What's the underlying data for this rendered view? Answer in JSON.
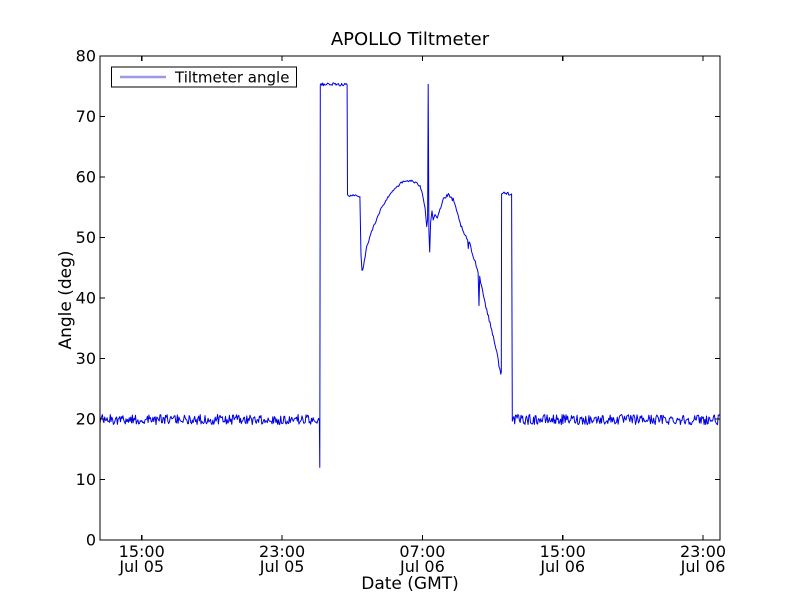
{
  "chart_data": {
    "type": "line",
    "title": "APOLLO Tiltmeter",
    "xlabel": "Date (GMT)",
    "ylabel": "Angle (deg)",
    "grid": false,
    "legend": {
      "position": "upper left",
      "entries": [
        {
          "label": "Tiltmeter angle",
          "sample_color": "#9a9ae6"
        }
      ]
    },
    "line_color": "#0000e8",
    "x_unit": "hours since Jul 05 00:00 GMT",
    "xlim": [
      12.62,
      47.97
    ],
    "ylim": [
      0,
      80
    ],
    "xticks": [
      {
        "t": 15,
        "time": "15:00",
        "date": "Jul 05"
      },
      {
        "t": 23,
        "time": "23:00",
        "date": "Jul 05"
      },
      {
        "t": 31,
        "time": "07:00",
        "date": "Jul 06"
      },
      {
        "t": 39,
        "time": "15:00",
        "date": "Jul 06"
      },
      {
        "t": 47,
        "time": "23:00",
        "date": "Jul 06"
      }
    ],
    "yticks": [
      {
        "v": 0,
        "label": "0"
      },
      {
        "v": 10,
        "label": "10"
      },
      {
        "v": 20,
        "label": "20"
      },
      {
        "v": 30,
        "label": "30"
      },
      {
        "v": 40,
        "label": "40"
      },
      {
        "v": 50,
        "label": "50"
      },
      {
        "v": 60,
        "label": "60"
      },
      {
        "v": 70,
        "label": "70"
      },
      {
        "v": 80,
        "label": "80"
      }
    ],
    "segments": [
      {
        "type": "flat-noisy",
        "t0": 12.62,
        "t1": 25.13,
        "level": 19.9,
        "amp": 0.85
      },
      {
        "type": "path",
        "points": [
          [
            25.13,
            19.2
          ],
          [
            25.15,
            12.0
          ],
          [
            25.18,
            75.0
          ]
        ]
      },
      {
        "type": "flat-noisy",
        "t0": 25.18,
        "t1": 26.71,
        "level": 75.3,
        "amp": 0.25
      },
      {
        "type": "path",
        "points": [
          [
            26.71,
            75.2
          ],
          [
            26.73,
            57.1
          ]
        ]
      },
      {
        "type": "flat-noisy",
        "t0": 26.73,
        "t1": 27.44,
        "level": 56.9,
        "amp": 0.2
      },
      {
        "type": "path",
        "jitter": 0.22,
        "points": [
          [
            27.44,
            56.8
          ],
          [
            27.5,
            47.0
          ],
          [
            27.56,
            44.5
          ],
          [
            27.65,
            45.3
          ],
          [
            27.83,
            48.5
          ],
          [
            28.1,
            51.0
          ],
          [
            28.4,
            53.0
          ],
          [
            28.7,
            55.1
          ],
          [
            28.97,
            56.3
          ],
          [
            29.3,
            57.8
          ],
          [
            29.54,
            58.4
          ],
          [
            29.85,
            59.1
          ],
          [
            30.1,
            59.35
          ],
          [
            30.35,
            59.4
          ],
          [
            30.6,
            59.0
          ],
          [
            30.87,
            58.6
          ],
          [
            31.0,
            57.4
          ],
          [
            31.15,
            55.0
          ],
          [
            31.25,
            51.8
          ]
        ]
      },
      {
        "type": "path",
        "jitter": 0,
        "points": [
          [
            31.25,
            51.8
          ],
          [
            31.3,
            53.0
          ],
          [
            31.33,
            75.3
          ],
          [
            31.37,
            51.0
          ],
          [
            31.42,
            47.6
          ],
          [
            31.47,
            52.5
          ],
          [
            31.55,
            54.4
          ],
          [
            31.62,
            52.9
          ],
          [
            31.72,
            53.8
          ],
          [
            31.85,
            53.2
          ],
          [
            31.95,
            54.2
          ]
        ]
      },
      {
        "type": "path",
        "jitter": 0.3,
        "points": [
          [
            31.95,
            54.2
          ],
          [
            32.2,
            56.4
          ],
          [
            32.48,
            57.0
          ],
          [
            32.76,
            56.2
          ],
          [
            33.05,
            53.4
          ],
          [
            33.34,
            50.7
          ],
          [
            33.58,
            49.7
          ],
          [
            33.62,
            48.0
          ],
          [
            33.66,
            49.3
          ],
          [
            33.91,
            46.8
          ],
          [
            34.18,
            44.5
          ],
          [
            34.23,
            38.8
          ],
          [
            34.27,
            43.5
          ],
          [
            34.48,
            40.5
          ],
          [
            34.67,
            38.0
          ],
          [
            34.86,
            35.8
          ],
          [
            35.05,
            33.6
          ],
          [
            35.24,
            31.1
          ],
          [
            35.37,
            28.9
          ],
          [
            35.47,
            27.4
          ]
        ]
      },
      {
        "type": "path",
        "points": [
          [
            35.47,
            27.4
          ],
          [
            35.5,
            27.8
          ],
          [
            35.52,
            57.0
          ]
        ]
      },
      {
        "type": "flat-noisy",
        "t0": 35.52,
        "t1": 36.09,
        "level": 57.3,
        "amp": 0.3
      },
      {
        "type": "path",
        "points": [
          [
            36.09,
            57.2
          ],
          [
            36.13,
            20.3
          ]
        ]
      },
      {
        "type": "flat-noisy",
        "t0": 36.13,
        "t1": 47.97,
        "level": 19.9,
        "amp": 0.85
      }
    ]
  }
}
